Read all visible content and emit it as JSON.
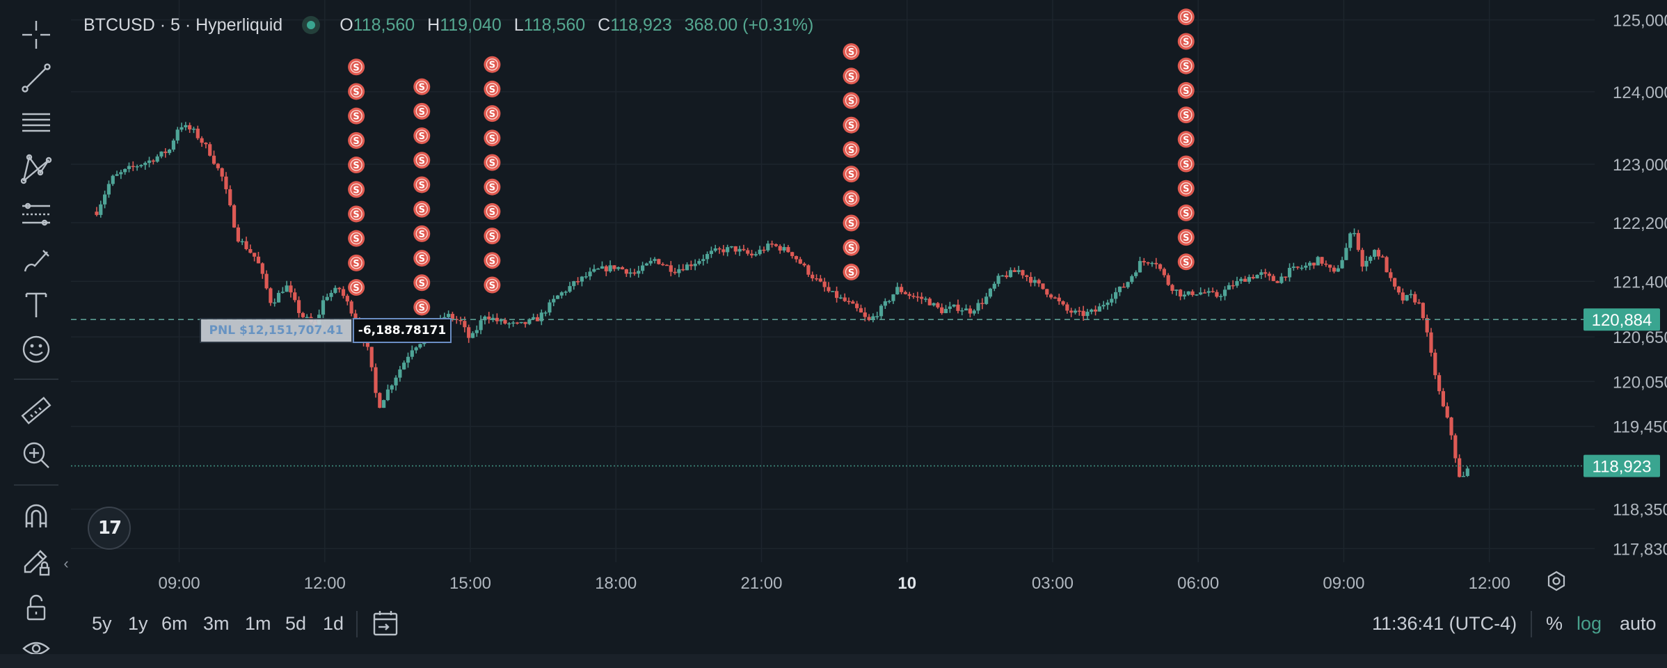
{
  "legend": {
    "symbol": "BTCUSD · 5 · Hyperliquid",
    "open_label": "O",
    "open": "118,560",
    "high_label": "H",
    "high": "119,040",
    "low_label": "L",
    "low": "118,560",
    "close_label": "C",
    "close": "118,923",
    "change": "368.00 (+0.31%)"
  },
  "toolbar": {
    "icons": [
      "crosshair-icon",
      "trend-line-icon",
      "fib-lines-icon",
      "pattern-icon",
      "forecast-icon",
      "brush-icon",
      "text-icon",
      "emoji-icon",
      "ruler-icon",
      "zoom-in-icon",
      "magnet-icon",
      "draw-lock-icon",
      "lock-icon",
      "eye-icon"
    ],
    "collapse_glyph": "‹"
  },
  "position": {
    "pnl_text": "PNL $12,151,707.41",
    "size_text": "-6,188.78171"
  },
  "bottom": {
    "ranges": [
      "5y",
      "1y",
      "6m",
      "3m",
      "1m",
      "5d",
      "1d"
    ],
    "clock": "11:36:41 (UTC-4)",
    "percent": "%",
    "log": "log",
    "auto": "auto"
  },
  "tv_logo": "17",
  "colors": {
    "background": "#131a21",
    "up": "#4fa598",
    "down": "#dd5a55",
    "marker": "#e05a50",
    "accent_green": "#3aa590",
    "grid": "#1d252d"
  },
  "chart_data": {
    "type": "candlestick",
    "symbol": "BTCUSD",
    "interval": "5",
    "exchange": "Hyperliquid",
    "y_scale": "log",
    "ylim": [
      117650,
      125200
    ],
    "y_ticks": [
      {
        "value": 125000,
        "label": "125,000"
      },
      {
        "value": 124000,
        "label": "124,000"
      },
      {
        "value": 123000,
        "label": "123,000"
      },
      {
        "value": 122200,
        "label": "122,200"
      },
      {
        "value": 121400,
        "label": "121,400"
      },
      {
        "value": 120650,
        "label": "120,650"
      },
      {
        "value": 120050,
        "label": "120,050"
      },
      {
        "value": 119450,
        "label": "119,450"
      },
      {
        "value": 118350,
        "label": "118,350"
      },
      {
        "value": 117830,
        "label": "117,830"
      }
    ],
    "x_ticks": [
      {
        "t": 9,
        "label": "09:00",
        "bold": false
      },
      {
        "t": 12,
        "label": "12:00",
        "bold": false
      },
      {
        "t": 15,
        "label": "15:00",
        "bold": false
      },
      {
        "t": 18,
        "label": "18:00",
        "bold": false
      },
      {
        "t": 21,
        "label": "21:00",
        "bold": false
      },
      {
        "t": 24,
        "label": "10",
        "bold": true
      },
      {
        "t": 27,
        "label": "03:00",
        "bold": false
      },
      {
        "t": 30,
        "label": "06:00",
        "bold": false
      },
      {
        "t": 33,
        "label": "09:00",
        "bold": false
      },
      {
        "t": 36,
        "label": "12:00",
        "bold": false
      }
    ],
    "x_range_hours": [
      7.2,
      38.6
    ],
    "grid": true,
    "price_lines": [
      {
        "value": 120884,
        "label": "120,884",
        "style": "dashed",
        "kind": "position"
      },
      {
        "value": 118923,
        "label": "118,923",
        "style": "dotted",
        "kind": "last"
      }
    ],
    "path_hours": [
      7.3,
      7.6,
      8.0,
      8.4,
      8.8,
      9.0,
      9.3,
      9.6,
      9.9,
      10.2,
      10.6,
      10.9,
      11.2,
      11.5,
      11.8,
      12.0,
      12.3,
      12.6,
      12.9,
      13.1,
      13.4,
      13.8,
      14.2,
      14.5,
      14.8,
      15.0,
      15.3,
      15.6,
      16.0,
      16.4,
      16.8,
      17.2,
      17.6,
      18.0,
      18.4,
      18.8,
      19.2,
      19.6,
      20.0,
      20.4,
      20.8,
      21.2,
      21.6,
      22.0,
      22.4,
      22.8,
      23.0,
      23.2,
      23.5,
      23.8,
      24.1,
      24.4,
      24.7,
      25.0,
      25.3,
      25.6,
      25.9,
      26.3,
      26.7,
      27.0,
      27.3,
      27.6,
      27.9,
      28.2,
      28.5,
      28.8,
      29.1,
      29.4,
      29.7,
      29.9,
      30.1,
      30.4,
      30.7,
      31.0,
      31.3,
      31.6,
      31.9,
      32.2,
      32.5,
      32.8,
      33.0,
      33.2,
      33.4,
      33.6,
      33.8,
      34.0,
      34.2,
      34.4,
      34.6,
      34.8,
      35.0,
      35.2,
      35.4,
      35.6
    ],
    "path_prices": [
      122350,
      122800,
      122950,
      123050,
      123200,
      123550,
      123450,
      123200,
      122800,
      122000,
      121700,
      121100,
      121350,
      120950,
      120800,
      121200,
      121300,
      120950,
      120450,
      119700,
      120050,
      120500,
      120700,
      120950,
      120850,
      120600,
      120950,
      120850,
      120800,
      120900,
      121200,
      121400,
      121550,
      121600,
      121500,
      121700,
      121550,
      121650,
      121800,
      121850,
      121750,
      121900,
      121800,
      121500,
      121250,
      121100,
      121000,
      120850,
      121050,
      121300,
      121200,
      121150,
      121000,
      121050,
      121000,
      121150,
      121450,
      121550,
      121350,
      121200,
      121000,
      120950,
      121000,
      121200,
      121350,
      121650,
      121700,
      121350,
      121200,
      121250,
      121250,
      121200,
      121350,
      121450,
      121500,
      121400,
      121550,
      121600,
      121700,
      121500,
      121750,
      122150,
      121550,
      121850,
      121700,
      121350,
      121150,
      121200,
      121050,
      120400,
      119800,
      119400,
      118700,
      118923
    ],
    "sell_markers": [
      {
        "hour": 12.65,
        "count": 10,
        "label": "S"
      },
      {
        "hour": 14.0,
        "count": 10,
        "label": "S"
      },
      {
        "hour": 15.45,
        "count": 10,
        "label": "S"
      },
      {
        "hour": 22.85,
        "count": 10,
        "label": "S"
      },
      {
        "hour": 29.75,
        "count": 11,
        "label": "S"
      }
    ],
    "position_label": "PNL $12,151,707.41",
    "position_size": "-6,188.78171"
  }
}
